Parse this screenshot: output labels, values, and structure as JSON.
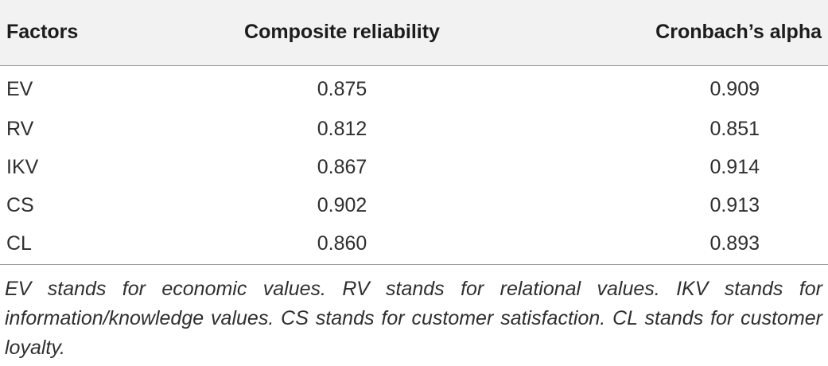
{
  "table": {
    "headers": {
      "factors": "Factors",
      "composite": "Composite reliability",
      "alpha": "Cronbach’s alpha"
    },
    "rows": [
      {
        "factor": "EV",
        "composite": "0.875",
        "alpha": "0.909"
      },
      {
        "factor": "RV",
        "composite": "0.812",
        "alpha": "0.851"
      },
      {
        "factor": "IKV",
        "composite": "0.867",
        "alpha": "0.914"
      },
      {
        "factor": "CS",
        "composite": "0.902",
        "alpha": "0.913"
      },
      {
        "factor": "CL",
        "composite": "0.860",
        "alpha": "0.893"
      }
    ],
    "footnote": "EV stands for economic values. RV stands for relational values. IKV stands for information/knowledge values. CS stands for customer satisfaction. CL stands for customer loyalty."
  }
}
